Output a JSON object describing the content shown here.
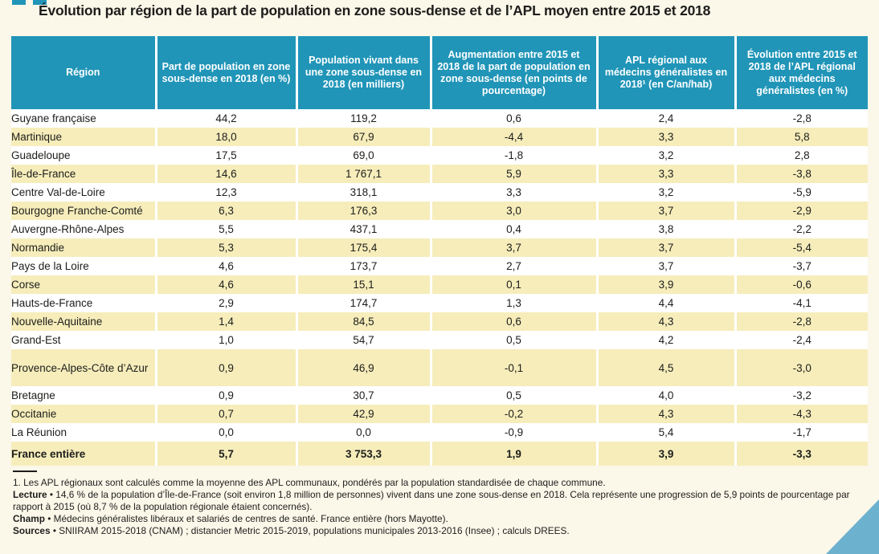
{
  "title": "Évolution par région de la part de population en zone sous-dense et de l’APL moyen entre 2015 et 2018",
  "table": {
    "columns": [
      "Région",
      "Part de population en zone sous-dense en 2018 (en %)",
      "Population vivant dans une zone sous-dense en 2018 (en milliers)",
      "Augmentation entre 2015 et 2018 de la part de population en zone sous-dense (en points de pourcentage)",
      "APL régional aux médecins généralistes en 2018¹ (en C/an/hab)",
      "Évolution entre 2015 et 2018 de l’APL régional aux médecins généralistes (en %)"
    ],
    "rows": [
      [
        "Guyane française",
        "44,2",
        "119,2",
        "0,6",
        "2,4",
        "-2,8"
      ],
      [
        "Martinique",
        "18,0",
        "67,9",
        "-4,4",
        "3,3",
        "5,8"
      ],
      [
        "Guadeloupe",
        "17,5",
        "69,0",
        "-1,8",
        "3,2",
        "2,8"
      ],
      [
        "Île-de-France",
        "14,6",
        "1 767,1",
        "5,9",
        "3,3",
        "-3,8"
      ],
      [
        "Centre Val-de-Loire",
        "12,3",
        "318,1",
        "3,3",
        "3,2",
        "-5,9"
      ],
      [
        "Bourgogne Franche-Comté",
        "6,3",
        "176,3",
        "3,0",
        "3,7",
        "-2,9"
      ],
      [
        "Auvergne-Rhône-Alpes",
        "5,5",
        "437,1",
        "0,4",
        "3,8",
        "-2,2"
      ],
      [
        "Normandie",
        "5,3",
        "175,4",
        "3,7",
        "3,7",
        "-5,4"
      ],
      [
        "Pays de la Loire",
        "4,6",
        "173,7",
        "2,7",
        "3,7",
        "-3,7"
      ],
      [
        "Corse",
        "4,6",
        "15,1",
        "0,1",
        "3,9",
        "-0,6"
      ],
      [
        "Hauts-de-France",
        "2,9",
        "174,7",
        "1,3",
        "4,4",
        "-4,1"
      ],
      [
        "Nouvelle-Aquitaine",
        "1,4",
        "84,5",
        "0,6",
        "4,3",
        "-2,8"
      ],
      [
        "Grand-Est",
        "1,0",
        "54,7",
        "0,5",
        "4,2",
        "-2,4"
      ],
      [
        "Provence-Alpes-Côte d’Azur",
        "0,9",
        "46,9",
        "-0,1",
        "4,5",
        "-3,0"
      ],
      [
        "Bretagne",
        "0,9",
        "30,7",
        "0,5",
        "4,0",
        "-3,2"
      ],
      [
        "Occitanie",
        "0,7",
        "42,9",
        "-0,2",
        "4,3",
        "-4,3"
      ],
      [
        "La Réunion",
        "0,0",
        "0,0",
        "-0,9",
        "5,4",
        "-1,7"
      ]
    ],
    "total_row": [
      "France entière",
      "5,7",
      "3 753,3",
      "1,9",
      "3,9",
      "-3,3"
    ]
  },
  "notes": [
    {
      "label": "",
      "text": "1. Les APL régionaux sont calculés comme la moyenne des APL communaux, pondérés par la population standardisée de chaque commune."
    },
    {
      "label": "Lecture",
      "text": " • 14,6 % de la population d’Île-de-France (soit environ 1,8 million de personnes) vivent dans une zone sous-dense en 2018. Cela représente une progression de 5,9 points de pourcentage par rapport à 2015 (où 8,7 % de la population régionale étaient concernés)."
    },
    {
      "label": "Champ",
      "text": " • Médecins généralistes libéraux et salariés de centres de santé. France entière (hors Mayotte)."
    },
    {
      "label": "Sources",
      "text": " • SNIIRAM 2015-2018 (CNAM) ; distancier Metric 2015-2019, populations municipales 2013-2016 (Insee) ; calculs DREES."
    }
  ],
  "colors": {
    "header_bg": "#2095b8",
    "row_alt_bg": "#f6edbb",
    "page_bg": "#fbf7e9",
    "corner_triangle": "#6cb1ce",
    "text": "#1d1d1b"
  }
}
